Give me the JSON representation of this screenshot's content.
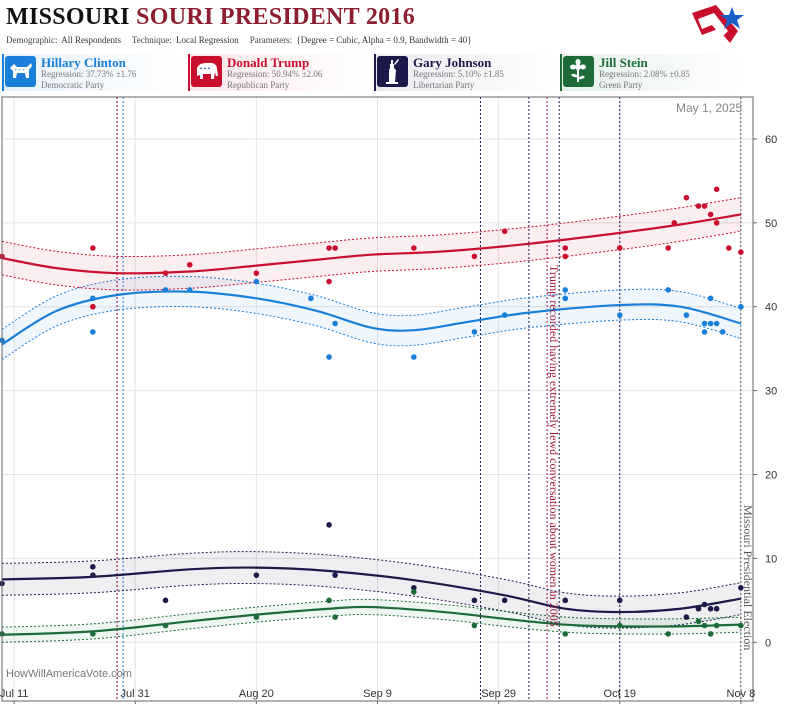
{
  "header": {
    "title_part1": "MISSOURI",
    "title_part2": "SOURI PRESIDENT 2016",
    "demographic_label": "Demographic:",
    "demographic_value": "All Respondents",
    "technique_label": "Technique:",
    "technique_value": "Local Regression",
    "parameters_label": "Parameters:",
    "parameters_value": "{Degree = Cubic, Alpha = 0.9, Bandwidth = 40}",
    "as_of": "May 1, 2025",
    "watermark": "HowWillAmericaVote.com"
  },
  "candidates": [
    {
      "name": "Hillary Clinton",
      "regression": "Regression: 37.73% ±1.76",
      "party": "Democratic Party",
      "color": "#1a7fd9",
      "icon": "donkey-icon"
    },
    {
      "name": "Donald Trump",
      "regression": "Regression: 50.94% ±2.06",
      "party": "Republican Party",
      "color": "#c8102e",
      "icon": "elephant-icon"
    },
    {
      "name": "Gary Johnson",
      "regression": "Regression: 5.10% ±1.85",
      "party": "Libertarian Party",
      "color": "#1b1a4a",
      "icon": "liberty-statue-icon"
    },
    {
      "name": "Jill Stein",
      "regression": "Regression: 2.08% ±0.85",
      "party": "Green Party",
      "color": "#1e6b3a",
      "icon": "flower-icon"
    }
  ],
  "chart_data": {
    "type": "scatter",
    "x_axis": {
      "type": "date",
      "ticks": [
        "Jul 11",
        "Jul 31",
        "Aug 20",
        "Sep 9",
        "Sep 29",
        "Oct 19",
        "Nov 8"
      ],
      "range": [
        "2016-07-09",
        "2016-11-10"
      ]
    },
    "y_axis": {
      "range": [
        -7,
        65
      ],
      "ticks": [
        0,
        10,
        20,
        30,
        40,
        50,
        60
      ],
      "gridlines": true
    },
    "annotations": [
      {
        "date": "2016-10-07",
        "text": "Trump recorded having extremely lewd conversation about women in 2005",
        "color": "#a0153e"
      },
      {
        "date": "2016-11-08",
        "text": "Missouri Presidential Election",
        "color": "#555555"
      }
    ],
    "event_lines": [
      {
        "date": "2016-07-28",
        "color": "#1b1a4a",
        "style": "dotted"
      },
      {
        "date": "2016-07-28",
        "color": "#a0153e",
        "style": "dotted"
      },
      {
        "date": "2016-07-29",
        "color": "#1a7fd9",
        "style": "dotted"
      },
      {
        "date": "2016-09-26",
        "color": "#1b1a4a",
        "style": "dotted"
      },
      {
        "date": "2016-10-04",
        "color": "#1b1a4a",
        "style": "dotted"
      },
      {
        "date": "2016-10-09",
        "color": "#1b1a4a",
        "style": "dotted"
      },
      {
        "date": "2016-10-19",
        "color": "#1b1a4a",
        "style": "dotted"
      }
    ],
    "series": [
      {
        "name": "Hillary Clinton",
        "color": "#1a7fd9",
        "points": [
          [
            "2016-07-09",
            36
          ],
          [
            "2016-07-24",
            41
          ],
          [
            "2016-07-24",
            37
          ],
          [
            "2016-08-05",
            42
          ],
          [
            "2016-08-09",
            42
          ],
          [
            "2016-08-20",
            43
          ],
          [
            "2016-08-29",
            41
          ],
          [
            "2016-09-01",
            34
          ],
          [
            "2016-09-02",
            38
          ],
          [
            "2016-09-15",
            34
          ],
          [
            "2016-09-25",
            37
          ],
          [
            "2016-09-30",
            39
          ],
          [
            "2016-10-10",
            42
          ],
          [
            "2016-10-10",
            41
          ],
          [
            "2016-10-19",
            39
          ],
          [
            "2016-10-27",
            42
          ],
          [
            "2016-10-30",
            39
          ],
          [
            "2016-11-02",
            38
          ],
          [
            "2016-11-02",
            37
          ],
          [
            "2016-11-03",
            41
          ],
          [
            "2016-11-03",
            38
          ],
          [
            "2016-11-04",
            38
          ],
          [
            "2016-11-05",
            37
          ],
          [
            "2016-11-08",
            40
          ]
        ],
        "trend": [
          [
            "2016-07-09",
            35.5
          ],
          [
            "2016-07-18",
            39.5
          ],
          [
            "2016-07-28",
            41.4
          ],
          [
            "2016-08-09",
            41.8
          ],
          [
            "2016-08-20",
            41
          ],
          [
            "2016-08-30",
            39.5
          ],
          [
            "2016-09-08",
            37.5
          ],
          [
            "2016-09-15",
            37.2
          ],
          [
            "2016-09-24",
            38.2
          ],
          [
            "2016-10-04",
            39.3
          ],
          [
            "2016-10-19",
            40.2
          ],
          [
            "2016-10-29",
            40
          ],
          [
            "2016-11-08",
            38
          ]
        ],
        "band": 1.8
      },
      {
        "name": "Donald Trump",
        "color": "#c8102e",
        "points": [
          [
            "2016-07-09",
            46
          ],
          [
            "2016-07-24",
            47
          ],
          [
            "2016-07-24",
            40
          ],
          [
            "2016-08-05",
            44
          ],
          [
            "2016-08-09",
            45
          ],
          [
            "2016-08-20",
            44
          ],
          [
            "2016-09-01",
            47
          ],
          [
            "2016-09-01",
            43
          ],
          [
            "2016-09-02",
            47
          ],
          [
            "2016-09-15",
            47
          ],
          [
            "2016-09-25",
            46
          ],
          [
            "2016-09-30",
            49
          ],
          [
            "2016-10-10",
            47
          ],
          [
            "2016-10-10",
            46
          ],
          [
            "2016-10-19",
            47
          ],
          [
            "2016-10-27",
            47
          ],
          [
            "2016-10-28",
            50
          ],
          [
            "2016-10-30",
            53
          ],
          [
            "2016-11-01",
            52
          ],
          [
            "2016-11-02",
            52
          ],
          [
            "2016-11-03",
            51
          ],
          [
            "2016-11-04",
            50
          ],
          [
            "2016-11-04",
            54
          ],
          [
            "2016-11-06",
            47
          ],
          [
            "2016-11-08",
            46.5
          ]
        ],
        "trend": [
          [
            "2016-07-09",
            45.8
          ],
          [
            "2016-07-18",
            44.6
          ],
          [
            "2016-07-28",
            44
          ],
          [
            "2016-08-09",
            44.2
          ],
          [
            "2016-08-20",
            44.9
          ],
          [
            "2016-08-30",
            45.6
          ],
          [
            "2016-09-08",
            46.2
          ],
          [
            "2016-09-20",
            46.6
          ],
          [
            "2016-10-04",
            47.5
          ],
          [
            "2016-10-19",
            48.8
          ],
          [
            "2016-10-29",
            49.8
          ],
          [
            "2016-11-08",
            51
          ]
        ],
        "band": 2.0
      },
      {
        "name": "Gary Johnson",
        "color": "#1b1a4a",
        "points": [
          [
            "2016-07-09",
            7
          ],
          [
            "2016-07-24",
            9
          ],
          [
            "2016-07-24",
            8
          ],
          [
            "2016-08-05",
            5
          ],
          [
            "2016-08-20",
            8
          ],
          [
            "2016-09-01",
            14
          ],
          [
            "2016-09-02",
            8
          ],
          [
            "2016-09-15",
            6.5
          ],
          [
            "2016-09-25",
            5
          ],
          [
            "2016-09-30",
            5
          ],
          [
            "2016-10-10",
            5
          ],
          [
            "2016-10-19",
            5
          ],
          [
            "2016-10-30",
            3
          ],
          [
            "2016-11-01",
            4
          ],
          [
            "2016-11-02",
            4.5
          ],
          [
            "2016-11-03",
            4
          ],
          [
            "2016-11-04",
            4
          ],
          [
            "2016-11-08",
            6.5
          ]
        ],
        "trend": [
          [
            "2016-07-09",
            7.5
          ],
          [
            "2016-07-24",
            7.8
          ],
          [
            "2016-08-09",
            8.7
          ],
          [
            "2016-08-20",
            8.9
          ],
          [
            "2016-09-01",
            8.5
          ],
          [
            "2016-09-15",
            7.4
          ],
          [
            "2016-09-30",
            5.6
          ],
          [
            "2016-10-10",
            4
          ],
          [
            "2016-10-19",
            3.6
          ],
          [
            "2016-10-29",
            4
          ],
          [
            "2016-11-08",
            5.2
          ]
        ],
        "band": 1.9
      },
      {
        "name": "Jill Stein",
        "color": "#1e6b3a",
        "points": [
          [
            "2016-07-09",
            1
          ],
          [
            "2016-07-24",
            1
          ],
          [
            "2016-08-05",
            2
          ],
          [
            "2016-08-20",
            3
          ],
          [
            "2016-09-01",
            5
          ],
          [
            "2016-09-02",
            3
          ],
          [
            "2016-09-15",
            6
          ],
          [
            "2016-09-25",
            2
          ],
          [
            "2016-10-10",
            1
          ],
          [
            "2016-10-19",
            2
          ],
          [
            "2016-10-27",
            1
          ],
          [
            "2016-11-01",
            2.5
          ],
          [
            "2016-11-02",
            2
          ],
          [
            "2016-11-03",
            1
          ],
          [
            "2016-11-04",
            2
          ],
          [
            "2016-11-08",
            2
          ]
        ],
        "trend": [
          [
            "2016-07-09",
            0.9
          ],
          [
            "2016-07-24",
            1.3
          ],
          [
            "2016-08-09",
            2.5
          ],
          [
            "2016-08-20",
            3.3
          ],
          [
            "2016-09-01",
            4
          ],
          [
            "2016-09-08",
            4.2
          ],
          [
            "2016-09-20",
            3.6
          ],
          [
            "2016-09-30",
            2.8
          ],
          [
            "2016-10-10",
            2.1
          ],
          [
            "2016-10-19",
            1.9
          ],
          [
            "2016-10-29",
            1.9
          ],
          [
            "2016-11-08",
            2.1
          ]
        ],
        "band": 0.9
      }
    ]
  }
}
